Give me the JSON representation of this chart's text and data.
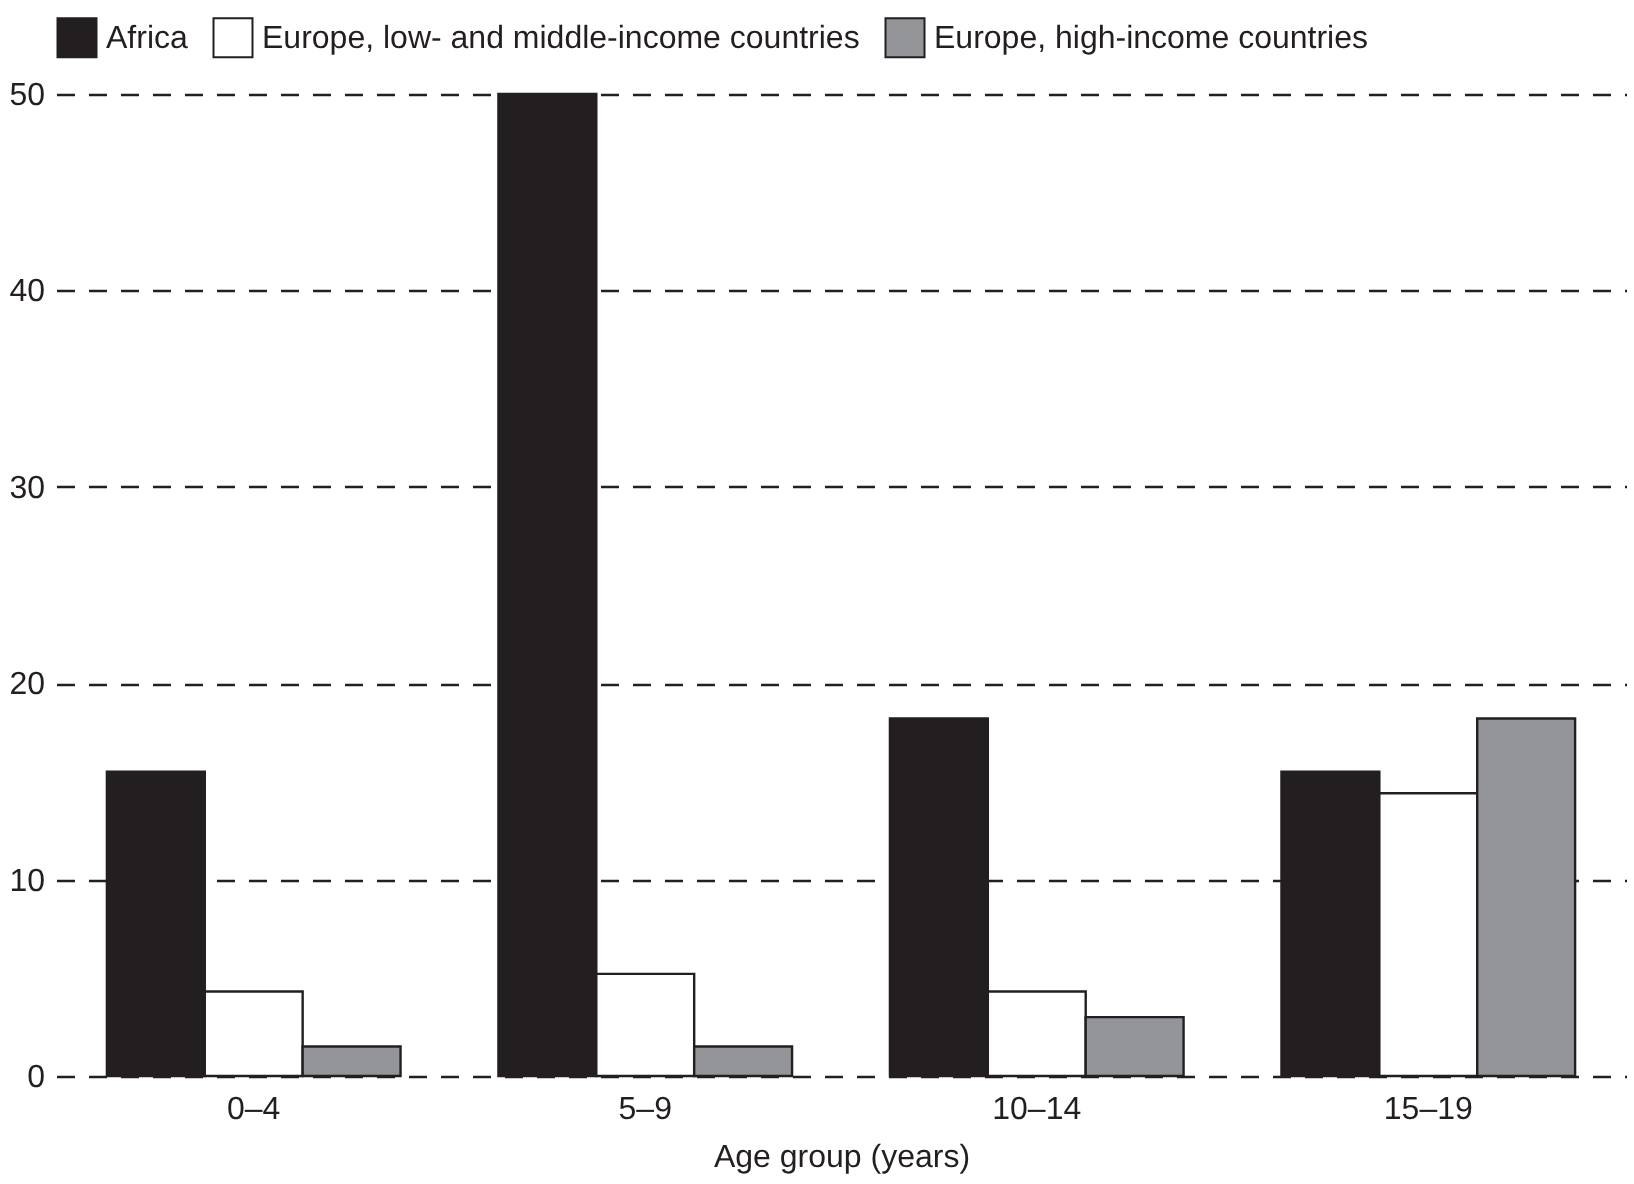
{
  "chart_data": {
    "type": "bar",
    "xlabel": "Age group (years)",
    "categories": [
      "0–4",
      "5–9",
      "10–14",
      "15–19"
    ],
    "series": [
      {
        "name": "Africa",
        "color": "#231f20",
        "values": [
          15.5,
          50,
          18.2,
          15.5
        ]
      },
      {
        "name": "Europe, low- and middle-income countries",
        "color": "#ffffff",
        "values": [
          4.3,
          5.2,
          4.3,
          14.4
        ]
      },
      {
        "name": "Europe, high-income countries",
        "color": "#939598",
        "values": [
          1.5,
          1.5,
          3.0,
          18.2
        ]
      }
    ],
    "ylim": [
      0,
      50
    ],
    "yticks": [
      0,
      10,
      20,
      30,
      40,
      50
    ],
    "grid": "y",
    "legend": "top left"
  }
}
